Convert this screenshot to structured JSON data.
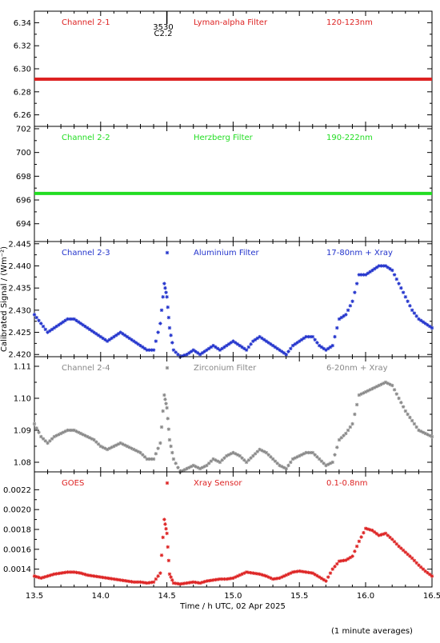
{
  "figure": {
    "ylabel": "Calibrated Signal / (Wm⁻²)",
    "xlabel": "Time / h UTC, 02 Apr 2025",
    "footnote": "(1 minute averages)",
    "x_ticks": [
      "13.5",
      "14.0",
      "14.5",
      "15.0",
      "15.5",
      "16.0",
      "16.5"
    ]
  },
  "event_marker": {
    "time_label": "3530",
    "class_label": "C2.2"
  },
  "chart_data": [
    {
      "type": "scatter",
      "panel_label": "Channel 2-1",
      "filter": "Lyman-alpha Filter",
      "band": "120-123nm",
      "color": "#dd2222",
      "xlim": [
        13.5,
        16.5
      ],
      "ylim": [
        6.25,
        6.35
      ],
      "yticks": [
        "6.26",
        "6.28",
        "6.30",
        "6.32",
        "6.34"
      ],
      "yvals": [
        6.26,
        6.28,
        6.3,
        6.32,
        6.34
      ],
      "series": [
        {
          "x": [
            13.5,
            16.5
          ],
          "y": [
            6.291,
            6.291
          ]
        }
      ]
    },
    {
      "type": "scatter",
      "panel_label": "Channel 2-2",
      "filter": "Herzberg Filter",
      "band": "190-222nm",
      "color": "#22dd22",
      "xlim": [
        13.5,
        16.5
      ],
      "ylim": [
        692.5,
        702.2
      ],
      "yticks": [
        "694",
        "696",
        "698",
        "700",
        "702"
      ],
      "yvals": [
        694,
        696,
        698,
        700,
        702
      ],
      "series": [
        {
          "x": [
            13.5,
            16.5
          ],
          "y": [
            696.55,
            696.55
          ]
        }
      ]
    },
    {
      "type": "scatter",
      "panel_label": "Channel 2-3",
      "filter": "Aluminium Filter",
      "band": "17-80nm + Xray",
      "color": "#2233cc",
      "xlim": [
        13.5,
        16.5
      ],
      "ylim": [
        2.4195,
        2.4455
      ],
      "yticks": [
        "2.420",
        "2.425",
        "2.430",
        "2.435",
        "2.440",
        "2.445"
      ],
      "yvals": [
        2.42,
        2.425,
        2.43,
        2.435,
        2.44,
        2.445
      ],
      "series": [
        {
          "x": [
            13.5,
            13.55,
            13.6,
            13.65,
            13.7,
            13.75,
            13.8,
            13.85,
            13.9,
            13.95,
            14.0,
            14.05,
            14.1,
            14.15,
            14.2,
            14.25,
            14.3,
            14.35,
            14.4,
            14.45,
            14.48,
            14.5,
            14.52,
            14.55,
            14.6,
            14.65,
            14.7,
            14.75,
            14.8,
            14.85,
            14.9,
            14.95,
            15.0,
            15.05,
            15.1,
            15.15,
            15.2,
            15.25,
            15.3,
            15.35,
            15.4,
            15.45,
            15.5,
            15.55,
            15.6,
            15.65,
            15.7,
            15.75,
            15.8,
            15.85,
            15.9,
            15.95,
            16.0,
            16.05,
            16.1,
            16.15,
            16.2,
            16.25,
            16.3,
            16.35,
            16.4,
            16.45,
            16.5
          ],
          "y": [
            2.429,
            2.427,
            2.425,
            2.426,
            2.427,
            2.428,
            2.428,
            2.427,
            2.426,
            2.425,
            2.424,
            2.423,
            2.424,
            2.425,
            2.424,
            2.423,
            2.422,
            2.421,
            2.421,
            2.427,
            2.436,
            2.433,
            2.426,
            2.421,
            2.4195,
            2.42,
            2.421,
            2.42,
            2.421,
            2.422,
            2.421,
            2.422,
            2.423,
            2.422,
            2.421,
            2.423,
            2.424,
            2.423,
            2.422,
            2.421,
            2.42,
            2.422,
            2.423,
            2.424,
            2.424,
            2.422,
            2.421,
            2.422,
            2.428,
            2.429,
            2.432,
            2.438,
            2.438,
            2.439,
            2.44,
            2.44,
            2.439,
            2.436,
            2.433,
            2.43,
            2.428,
            2.427,
            2.426
          ]
        }
      ]
    },
    {
      "type": "scatter",
      "panel_label": "Channel 2-4",
      "filter": "Zirconium Filter",
      "band": "6-20nm + Xray",
      "color": "#888888",
      "xlim": [
        13.5,
        16.5
      ],
      "ylim": [
        1.077,
        1.113
      ],
      "yticks": [
        "1.08",
        "1.09",
        "1.10",
        "1.11"
      ],
      "yvals": [
        1.08,
        1.09,
        1.1,
        1.11
      ],
      "series": [
        {
          "x": [
            13.5,
            13.55,
            13.6,
            13.65,
            13.7,
            13.75,
            13.8,
            13.85,
            13.9,
            13.95,
            14.0,
            14.05,
            14.1,
            14.15,
            14.2,
            14.25,
            14.3,
            14.35,
            14.4,
            14.45,
            14.48,
            14.5,
            14.52,
            14.55,
            14.6,
            14.65,
            14.7,
            14.75,
            14.8,
            14.85,
            14.9,
            14.95,
            15.0,
            15.05,
            15.1,
            15.15,
            15.2,
            15.25,
            15.3,
            15.35,
            15.4,
            15.45,
            15.5,
            15.55,
            15.6,
            15.65,
            15.7,
            15.75,
            15.8,
            15.85,
            15.9,
            15.95,
            16.0,
            16.05,
            16.1,
            16.15,
            16.2,
            16.25,
            16.3,
            16.35,
            16.4,
            16.45,
            16.5
          ],
          "y": [
            1.092,
            1.088,
            1.086,
            1.088,
            1.089,
            1.09,
            1.09,
            1.089,
            1.088,
            1.087,
            1.085,
            1.084,
            1.085,
            1.086,
            1.085,
            1.084,
            1.083,
            1.081,
            1.081,
            1.086,
            1.101,
            1.097,
            1.087,
            1.081,
            1.077,
            1.078,
            1.079,
            1.078,
            1.079,
            1.081,
            1.08,
            1.082,
            1.083,
            1.082,
            1.08,
            1.082,
            1.084,
            1.083,
            1.081,
            1.079,
            1.078,
            1.081,
            1.082,
            1.083,
            1.083,
            1.081,
            1.079,
            1.08,
            1.087,
            1.089,
            1.092,
            1.101,
            1.102,
            1.103,
            1.104,
            1.105,
            1.104,
            1.1,
            1.096,
            1.093,
            1.09,
            1.089,
            1.088
          ]
        }
      ]
    },
    {
      "type": "scatter",
      "panel_label": "GOES",
      "filter": "Xray Sensor",
      "band": "0.1-0.8nm",
      "color": "#dd2222",
      "xlim": [
        13.5,
        16.5
      ],
      "ylim": [
        0.00122,
        0.00238
      ],
      "yticks": [
        "0.0014",
        "0.0016",
        "0.0018",
        "0.0020",
        "0.0022"
      ],
      "yvals": [
        0.0014,
        0.0016,
        0.0018,
        0.002,
        0.0022
      ],
      "series": [
        {
          "x": [
            13.5,
            13.55,
            13.6,
            13.65,
            13.7,
            13.75,
            13.8,
            13.85,
            13.9,
            13.95,
            14.0,
            14.05,
            14.1,
            14.15,
            14.2,
            14.25,
            14.3,
            14.35,
            14.4,
            14.45,
            14.48,
            14.5,
            14.52,
            14.55,
            14.6,
            14.65,
            14.7,
            14.75,
            14.8,
            14.85,
            14.9,
            14.95,
            15.0,
            15.05,
            15.1,
            15.15,
            15.2,
            15.25,
            15.3,
            15.35,
            15.4,
            15.45,
            15.5,
            15.55,
            15.6,
            15.65,
            15.7,
            15.75,
            15.8,
            15.85,
            15.9,
            15.95,
            16.0,
            16.05,
            16.1,
            16.15,
            16.2,
            16.25,
            16.3,
            16.35,
            16.4,
            16.45,
            16.5
          ],
          "y": [
            0.00133,
            0.00131,
            0.00133,
            0.00135,
            0.00136,
            0.00137,
            0.00137,
            0.00136,
            0.00134,
            0.00133,
            0.00132,
            0.00131,
            0.0013,
            0.00129,
            0.00128,
            0.00127,
            0.00127,
            0.00126,
            0.00127,
            0.00136,
            0.0019,
            0.00176,
            0.00135,
            0.00126,
            0.00125,
            0.00126,
            0.00127,
            0.00126,
            0.00128,
            0.00129,
            0.0013,
            0.0013,
            0.00131,
            0.00134,
            0.00137,
            0.00136,
            0.00135,
            0.00133,
            0.0013,
            0.00131,
            0.00134,
            0.00137,
            0.00138,
            0.00137,
            0.00136,
            0.00132,
            0.00128,
            0.0014,
            0.00148,
            0.00149,
            0.00153,
            0.00168,
            0.00181,
            0.00179,
            0.00174,
            0.00176,
            0.0017,
            0.00163,
            0.00157,
            0.00151,
            0.00144,
            0.00138,
            0.00133
          ]
        }
      ]
    }
  ]
}
